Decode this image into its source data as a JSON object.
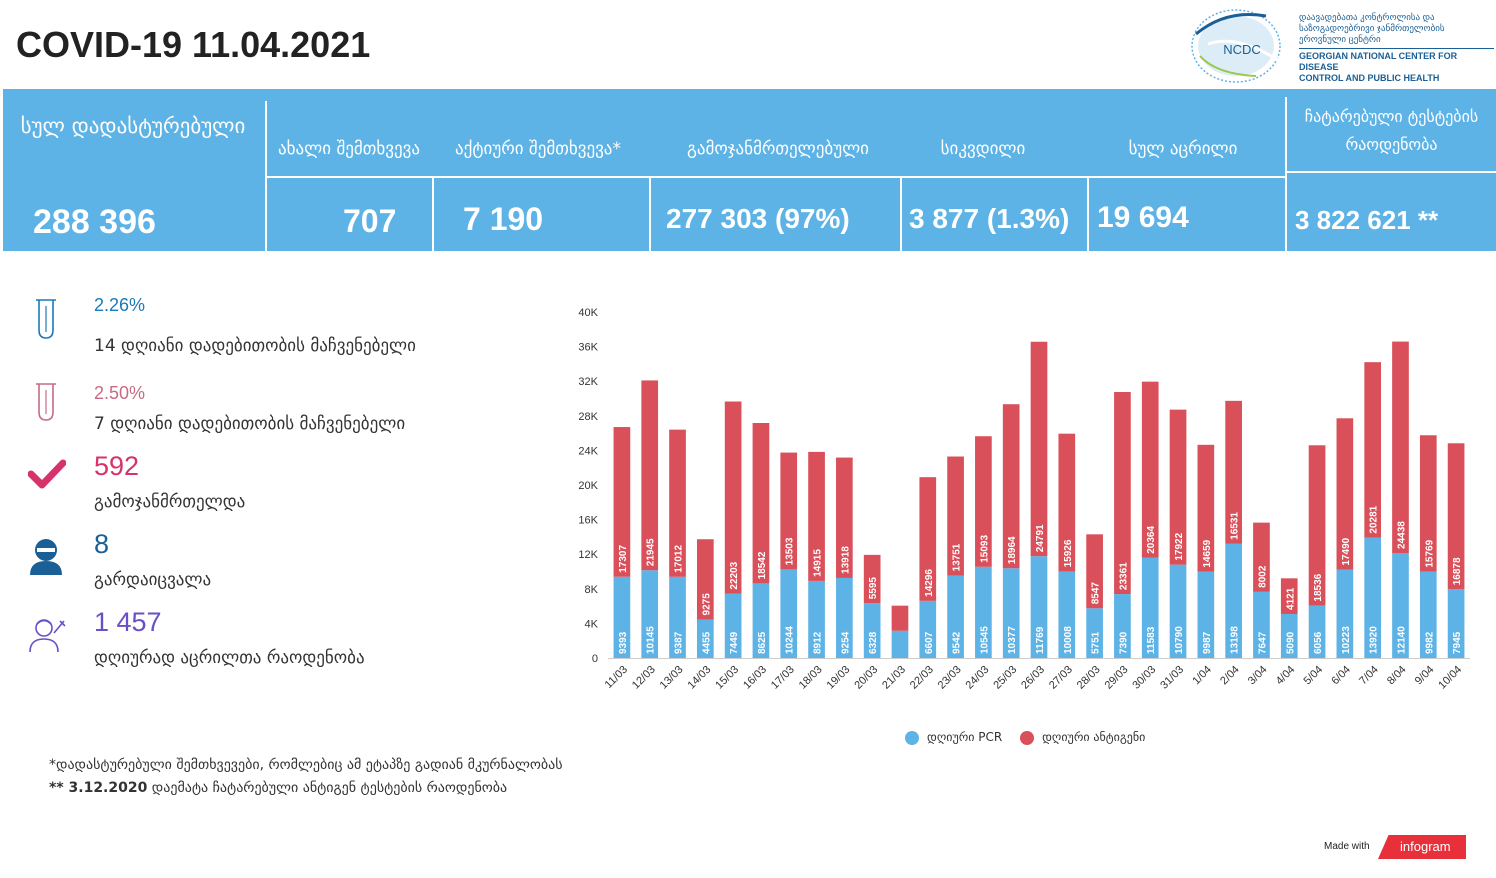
{
  "header": {
    "title": "COVID-19 11.04.2021"
  },
  "logo": {
    "abbr": "NCDC",
    "ka_line1": "დაავადებათა კონტროლისა და",
    "ka_line2": "საზოგადოებრივი ჯანმრთელობის",
    "ka_line3": "ეროვნული ცენტრი",
    "en_line1": "GEORGIAN NATIONAL CENTER FOR DISEASE",
    "en_line2": "CONTROL AND PUBLIC HEALTH"
  },
  "stats": {
    "total_label": "სულ დადასტურებული",
    "total_value": "288 396",
    "new_label": "ახალი შემთხვევა",
    "new_value": "707",
    "active_label": "აქტიური შემთხვევა*",
    "active_value": "7 190",
    "recovered_label": "გამოჯანმრთელებული",
    "recovered_value": "277 303 (97%)",
    "deaths_label": "სიკვდილი",
    "deaths_value": "3 877 (1.3%)",
    "vaccinated_label": "სულ აცრილი",
    "vaccinated_value": "19 694",
    "tests_label": "ჩატარებული ტესტების რაოდენობა",
    "tests_value": "3 822 621 **"
  },
  "side": {
    "inc14_pct": "2.26%",
    "inc14_label": "14  დღიანი დადებითობის მაჩვენებელი",
    "inc7_pct": "2.50%",
    "inc7_label": "7 დღიანი დადებითობის მაჩვენებელი",
    "recovered_num": "592",
    "recovered_label": "გამოჯანმრთელდა",
    "deaths_num": "8",
    "deaths_label": "გარდაიცვალა",
    "vacc_num": "1 457",
    "vacc_label": " დღიურად აცრილთა რაოდენობა"
  },
  "colors": {
    "pcr": "#5eb3e6",
    "antigen": "#d9505a",
    "pct14": "#1a7ab8",
    "pct7": "#c76b84",
    "recovered": "#d6336c",
    "deaths": "#1a5f95",
    "vacc": "#6a4fc7"
  },
  "chart_data": {
    "type": "bar",
    "stacked": true,
    "categories": [
      "11/03",
      "12/03",
      "13/03",
      "14/03",
      "15/03",
      "16/03",
      "17/03",
      "18/03",
      "19/03",
      "20/03",
      "21/03",
      "22/03",
      "23/03",
      "24/03",
      "25/03",
      "26/03",
      "27/03",
      "28/03",
      "29/03",
      "30/03",
      "31/03",
      "1/04",
      "2/04",
      "3/04",
      "4/04",
      "5/04",
      "6/04",
      "7/04",
      "8/04",
      "9/04",
      "10/04"
    ],
    "series": [
      {
        "name": "დღიური PCR",
        "values": [
          9393,
          10145,
          9387,
          4455,
          7449,
          8625,
          10244,
          8912,
          9254,
          6328,
          3150,
          6607,
          9542,
          10545,
          10377,
          11769,
          10008,
          5751,
          7390,
          11583,
          10790,
          9987,
          13198,
          7647,
          5090,
          6056,
          10223,
          13920,
          12140,
          9982,
          7945
        ],
        "labels": [
          "9393",
          "10145",
          "9387",
          "4455",
          "7449",
          "8625",
          "10244",
          "8912",
          "9254",
          "6328",
          "",
          "6607",
          "9542",
          "10545",
          "10377",
          "11769",
          "10008",
          "5751",
          "7390",
          "11583",
          "10790",
          "9987",
          "13198",
          "7647",
          "5090",
          "6056",
          "10223",
          "13920",
          "12140",
          "9982",
          "7945"
        ]
      },
      {
        "name": "დღიური ანტიგენი",
        "values": [
          17307,
          21945,
          17012,
          9275,
          22203,
          18542,
          13503,
          14915,
          13918,
          5595,
          2900,
          14296,
          13751,
          15093,
          18964,
          24791,
          15926,
          8547,
          23361,
          20364,
          17922,
          14659,
          16531,
          8002,
          4121,
          18536,
          17490,
          20281,
          24438,
          15769,
          16878
        ],
        "labels": [
          "17307",
          "21945",
          "17012",
          "9275",
          "22203",
          "18542",
          "13503",
          "14915",
          "13918",
          "5595",
          "",
          "14296",
          "13751",
          "15093",
          "18964",
          "24791",
          "15926",
          "8547",
          "23361",
          "20364",
          "17922",
          "14659",
          "16531",
          "8002",
          "4121",
          "18536",
          "17490",
          "20281",
          "24438",
          "15769",
          "16878"
        ]
      }
    ],
    "yticks": [
      "0",
      "4K",
      "8K",
      "12K",
      "16K",
      "20K",
      "24K",
      "28K",
      "32K",
      "36K",
      "40K"
    ],
    "ylim": [
      0,
      40000
    ],
    "legend_position": "bottom-center"
  },
  "footnotes": {
    "line1": "*დადასტურებული შემთხვევები, რომლებიც ამ ეტაპზე გადიან მკურნალობას",
    "line2_bold": "** 3.12.2020",
    "line2_rest": " დაემატა ჩატარებული ანტიგენ ტესტების რაოდენობა"
  },
  "branding": {
    "made_with": "Made with",
    "brand": "infogram"
  }
}
